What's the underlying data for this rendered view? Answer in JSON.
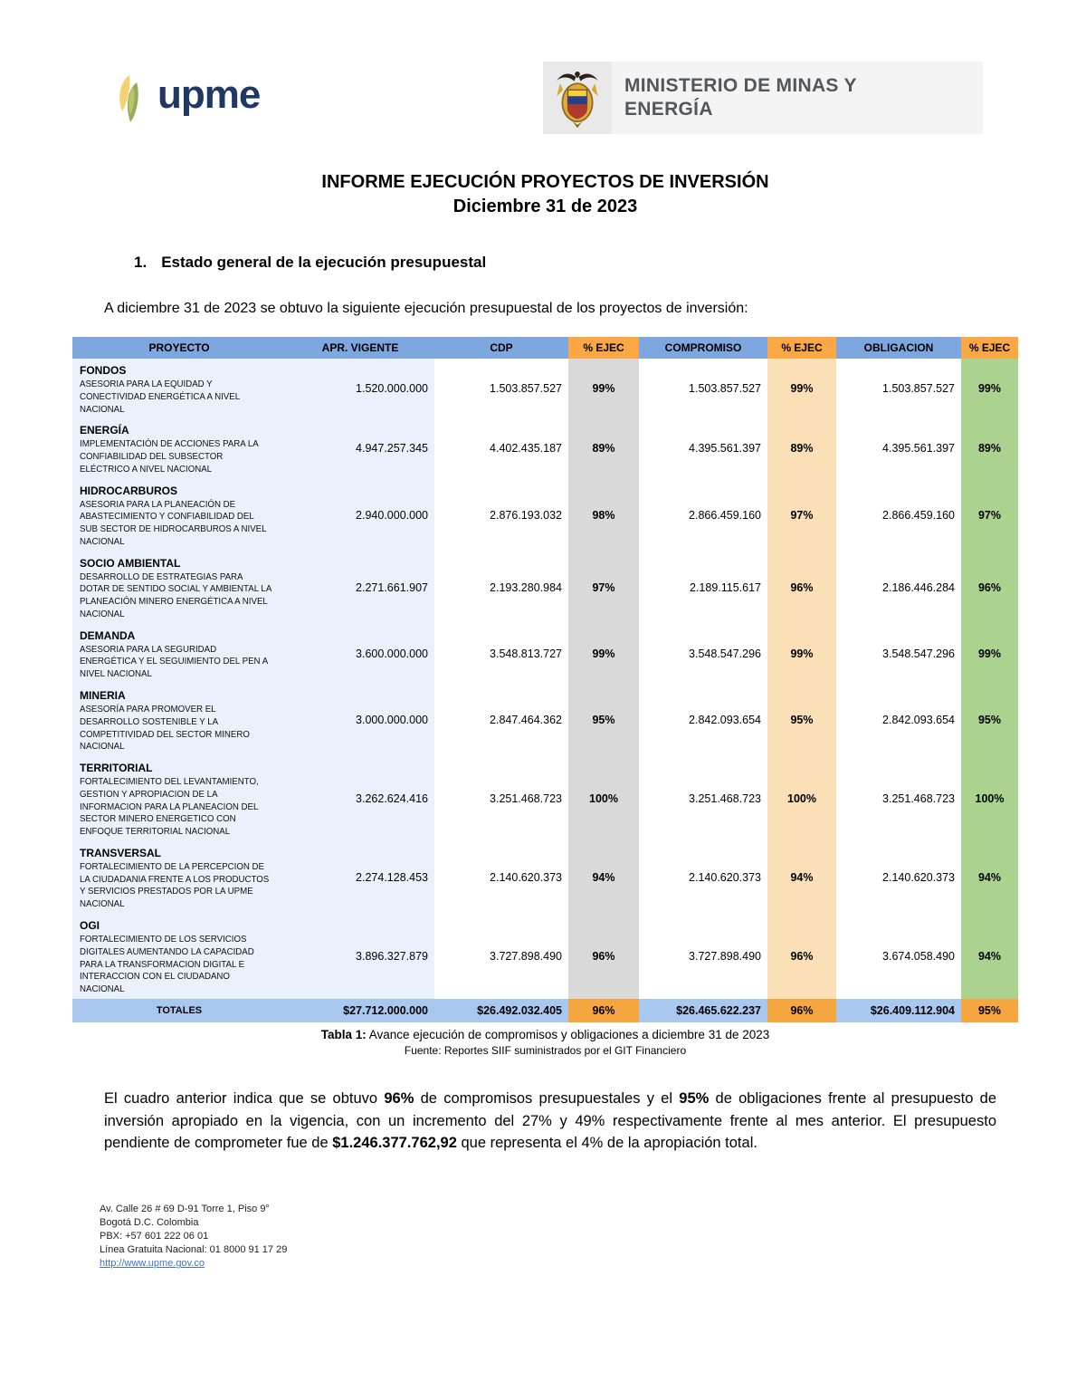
{
  "header": {
    "upme_wordmark": "upme",
    "ministry_line1": "MINISTERIO DE MINAS Y",
    "ministry_line2": "ENERGÍA"
  },
  "title": {
    "line1": "INFORME EJECUCIÓN PROYECTOS DE INVERSIÓN",
    "line2": "Diciembre 31 de 2023"
  },
  "section": {
    "number": "1.",
    "heading": "Estado general de la ejecución presupuestal"
  },
  "intro": "A diciembre 31 de 2023 se obtuvo la siguiente ejecución presupuestal de los proyectos de inversión:",
  "table": {
    "headers": [
      "PROYECTO",
      "APR. VIGENTE",
      "CDP",
      "% EJEC",
      "COMPROMISO",
      "% EJEC",
      "OBLIGACION",
      "% EJEC"
    ],
    "rows": [
      {
        "category": "FONDOS",
        "description": "ASESORIA PARA LA EQUIDAD Y CONECTIVIDAD ENERGÉTICA A NIVEL NACIONAL",
        "apr_vigente": "1.520.000.000",
        "cdp": "1.503.857.527",
        "ejec_cdp": "99%",
        "compromiso": "1.503.857.527",
        "ejec_compromiso": "99%",
        "obligacion": "1.503.857.527",
        "ejec_obligacion": "99%"
      },
      {
        "category": "ENERGÍA",
        "description": "IMPLEMENTACIÓN DE ACCIONES PARA LA CONFIABILIDAD DEL SUBSECTOR ELÉCTRICO A NIVEL  NACIONAL",
        "apr_vigente": "4.947.257.345",
        "cdp": "4.402.435.187",
        "ejec_cdp": "89%",
        "compromiso": "4.395.561.397",
        "ejec_compromiso": "89%",
        "obligacion": "4.395.561.397",
        "ejec_obligacion": "89%"
      },
      {
        "category": "HIDROCARBUROS",
        "description": "ASESORIA PARA LA PLANEACIÓN DE ABASTECIMIENTO Y CONFIABILIDAD DEL SUB SECTOR DE HIDROCARBUROS A NIVEL NACIONAL",
        "apr_vigente": "2.940.000.000",
        "cdp": "2.876.193.032",
        "ejec_cdp": "98%",
        "compromiso": "2.866.459.160",
        "ejec_compromiso": "97%",
        "obligacion": "2.866.459.160",
        "ejec_obligacion": "97%"
      },
      {
        "category": "SOCIO AMBIENTAL",
        "description": "DESARROLLO DE ESTRATEGIAS PARA DOTAR DE SENTIDO SOCIAL Y AMBIENTAL LA PLANEACIÓN MINERO ENERGÉTICA A NIVEL NACIONAL",
        "apr_vigente": "2.271.661.907",
        "cdp": "2.193.280.984",
        "ejec_cdp": "97%",
        "compromiso": "2.189.115.617",
        "ejec_compromiso": "96%",
        "obligacion": "2.186.446.284",
        "ejec_obligacion": "96%"
      },
      {
        "category": "DEMANDA",
        "description": "ASESORIA PARA LA SEGURIDAD ENERGÉTICA Y EL SEGUIMIENTO DEL  PEN  A NIVEL NACIONAL",
        "apr_vigente": "3.600.000.000",
        "cdp": "3.548.813.727",
        "ejec_cdp": "99%",
        "compromiso": "3.548.547.296",
        "ejec_compromiso": "99%",
        "obligacion": "3.548.547.296",
        "ejec_obligacion": "99%"
      },
      {
        "category": "MINERIA",
        "description": "ASESORÍA PARA PROMOVER EL DESARROLLO SOSTENIBLE Y LA COMPETITIVIDAD DEL SECTOR MINERO NACIONAL",
        "apr_vigente": "3.000.000.000",
        "cdp": "2.847.464.362",
        "ejec_cdp": "95%",
        "compromiso": "2.842.093.654",
        "ejec_compromiso": "95%",
        "obligacion": "2.842.093.654",
        "ejec_obligacion": "95%"
      },
      {
        "category": "TERRITORIAL",
        "description": "FORTALECIMIENTO DEL LEVANTAMIENTO, GESTION Y APROPIACION DE LA INFORMACION PARA LA PLANEACION  DEL SECTOR MINERO ENERGETICO CON ENFOQUE TERRITORIAL  NACIONAL",
        "apr_vigente": "3.262.624.416",
        "cdp": "3.251.468.723",
        "ejec_cdp": "100%",
        "compromiso": "3.251.468.723",
        "ejec_compromiso": "100%",
        "obligacion": "3.251.468.723",
        "ejec_obligacion": "100%"
      },
      {
        "category": "TRANSVERSAL",
        "description": "FORTALECIMIENTO DE LA PERCEPCION DE LA CIUDADANIA FRENTE A LOS PRODUCTOS Y SERVICIOS PRESTADOS POR LA UPME NACIONAL",
        "apr_vigente": "2.274.128.453",
        "cdp": "2.140.620.373",
        "ejec_cdp": "94%",
        "compromiso": "2.140.620.373",
        "ejec_compromiso": "94%",
        "obligacion": "2.140.620.373",
        "ejec_obligacion": "94%"
      },
      {
        "category": "OGI",
        "description": "FORTALECIMIENTO DE LOS SERVICIOS DIGITALES AUMENTANDO LA CAPACIDAD PARA LA TRANSFORMACION DIGITAL E INTERACCION CON EL CIUDADANO NACIONAL",
        "apr_vigente": "3.896.327.879",
        "cdp": "3.727.898.490",
        "ejec_cdp": "96%",
        "compromiso": "3.727.898.490",
        "ejec_compromiso": "96%",
        "obligacion": "3.674.058.490",
        "ejec_obligacion": "94%"
      }
    ],
    "totals": {
      "label": "TOTALES",
      "apr_vigente": "$27.712.000.000",
      "cdp": "$26.492.032.405",
      "ejec_cdp": "96%",
      "compromiso": "$26.465.622.237",
      "ejec_compromiso": "96%",
      "obligacion": "$26.409.112.904",
      "ejec_obligacion": "95%"
    }
  },
  "caption": {
    "label": "Tabla 1:",
    "text": " Avance ejecución de compromisos y obligaciones a diciembre 31 de 2023",
    "source": "Fuente: Reportes SIIF suministrados por el GIT Financiero"
  },
  "summary_paragraph": {
    "segments": [
      {
        "text": "El cuadro anterior indica que se obtuvo ",
        "bold": false
      },
      {
        "text": "96%",
        "bold": true
      },
      {
        "text": " de compromisos presupuestales y el ",
        "bold": false
      },
      {
        "text": "95%",
        "bold": true
      },
      {
        "text": " de obligaciones frente al presupuesto de inversión apropiado en la vigencia, con un incremento del 27% y 49% respectivamente frente al mes anterior.  El presupuesto pendiente de comprometer fue de ",
        "bold": false
      },
      {
        "text": "$1.246.377.762,92",
        "bold": true
      },
      {
        "text": " que representa el 4% de la apropiación total.",
        "bold": false
      }
    ]
  },
  "footer": {
    "address_line1": "Av. Calle 26 # 69 D-91 Torre 1, Piso 9°",
    "address_line2": "Bogotá D.C. Colombia",
    "pbx": "PBX: +57 601 222 06 01",
    "toll_free": "Línea Gratuita Nacional: 01 8000 91 17 29",
    "url": "http://www.upme.gov.co"
  },
  "colors": {
    "header_blue": "#7EA6DF",
    "header_orange": "#F9A845",
    "column_light_blue": "#EAF1FC",
    "column_gray": "#D9D9D9",
    "column_light_orange": "#FBDFB6",
    "column_light_green": "#ABD28F",
    "totals_blue": "#A9C8F0",
    "totals_orange": "#F6A63F",
    "upme_navy": "#1F3864",
    "ministry_gray_text": "#55565A",
    "link_blue": "#4472C4"
  }
}
